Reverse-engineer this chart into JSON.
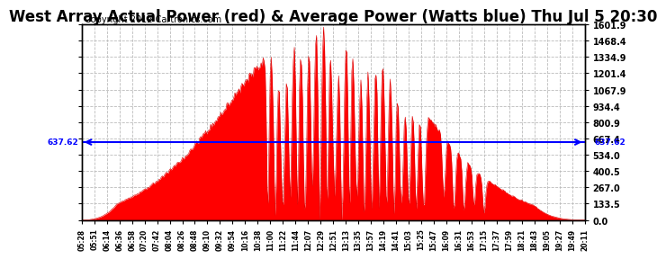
{
  "title": "West Array Actual Power (red) & Average Power (Watts blue) Thu Jul 5 20:30",
  "copyright": "Copyright 2012 Cartronics.com",
  "avg_power": 637.62,
  "ymax": 1601.9,
  "yticks": [
    0.0,
    133.5,
    267.0,
    400.5,
    534.0,
    667.4,
    800.9,
    934.4,
    1067.9,
    1201.4,
    1334.9,
    1468.4,
    1601.9
  ],
  "ytick_labels": [
    "0.0",
    "133.5",
    "267.0",
    "400.5",
    "534.0",
    "667.4",
    "800.9",
    "934.4",
    "1067.9",
    "1201.4",
    "1334.9",
    "1468.4",
    "1601.9"
  ],
  "avg_label": "637.62",
  "bg_color": "#ffffff",
  "fill_color": "#ff0000",
  "line_color": "#dd0000",
  "avg_line_color": "#0000ff",
  "grid_color": "#bbbbbb",
  "title_fontsize": 12,
  "copyright_fontsize": 7,
  "xtick_labels": [
    "05:28",
    "05:51",
    "06:14",
    "06:36",
    "06:58",
    "07:20",
    "07:42",
    "08:04",
    "08:26",
    "08:48",
    "09:10",
    "09:32",
    "09:54",
    "10:16",
    "10:38",
    "11:00",
    "11:22",
    "11:44",
    "12:07",
    "12:29",
    "12:51",
    "13:13",
    "13:35",
    "13:57",
    "14:19",
    "14:41",
    "15:03",
    "15:25",
    "15:47",
    "16:09",
    "16:31",
    "16:53",
    "17:15",
    "17:37",
    "17:59",
    "18:21",
    "18:43",
    "19:05",
    "19:27",
    "19:49",
    "20:11"
  ],
  "num_points": 500
}
